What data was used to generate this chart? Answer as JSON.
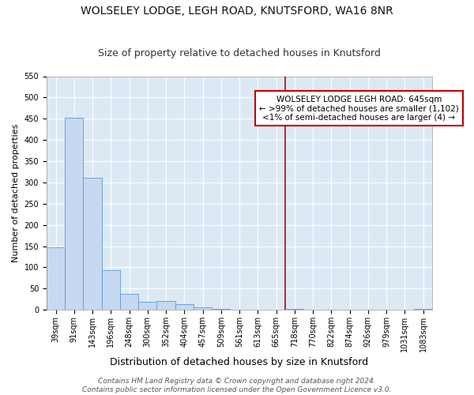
{
  "title": "WOLSELEY LODGE, LEGH ROAD, KNUTSFORD, WA16 8NR",
  "subtitle": "Size of property relative to detached houses in Knutsford",
  "xlabel": "Distribution of detached houses by size in Knutsford",
  "ylabel": "Number of detached properties",
  "bar_labels": [
    "39sqm",
    "91sqm",
    "143sqm",
    "196sqm",
    "248sqm",
    "300sqm",
    "352sqm",
    "404sqm",
    "457sqm",
    "509sqm",
    "561sqm",
    "613sqm",
    "665sqm",
    "718sqm",
    "770sqm",
    "822sqm",
    "874sqm",
    "926sqm",
    "979sqm",
    "1031sqm",
    "1083sqm"
  ],
  "bar_values": [
    148,
    452,
    311,
    93,
    37,
    18,
    21,
    14,
    5,
    3,
    0,
    0,
    0,
    3,
    0,
    0,
    0,
    0,
    0,
    0,
    3
  ],
  "bar_color": "#c6d9f0",
  "bar_edgecolor": "#5b9bd5",
  "vline_x": 12.5,
  "vline_color": "#c00000",
  "ylim_max": 550,
  "yticks": [
    0,
    50,
    100,
    150,
    200,
    250,
    300,
    350,
    400,
    450,
    500,
    550
  ],
  "annotation_title": "WOLSELEY LODGE LEGH ROAD: 645sqm",
  "annotation_line2": "← >99% of detached houses are smaller (1,102)",
  "annotation_line3": "<1% of semi-detached houses are larger (4) →",
  "annotation_box_color": "#c00000",
  "footer_line1": "Contains HM Land Registry data © Crown copyright and database right 2024.",
  "footer_line2": "Contains public sector information licensed under the Open Government Licence v3.0.",
  "plot_bg_color": "#dce9f5",
  "fig_bg_color": "#ffffff",
  "grid_color": "#ffffff",
  "title_fontsize": 10,
  "subtitle_fontsize": 9,
  "xlabel_fontsize": 9,
  "ylabel_fontsize": 8,
  "tick_fontsize": 7,
  "annot_fontsize": 7.5,
  "footer_fontsize": 6.5
}
